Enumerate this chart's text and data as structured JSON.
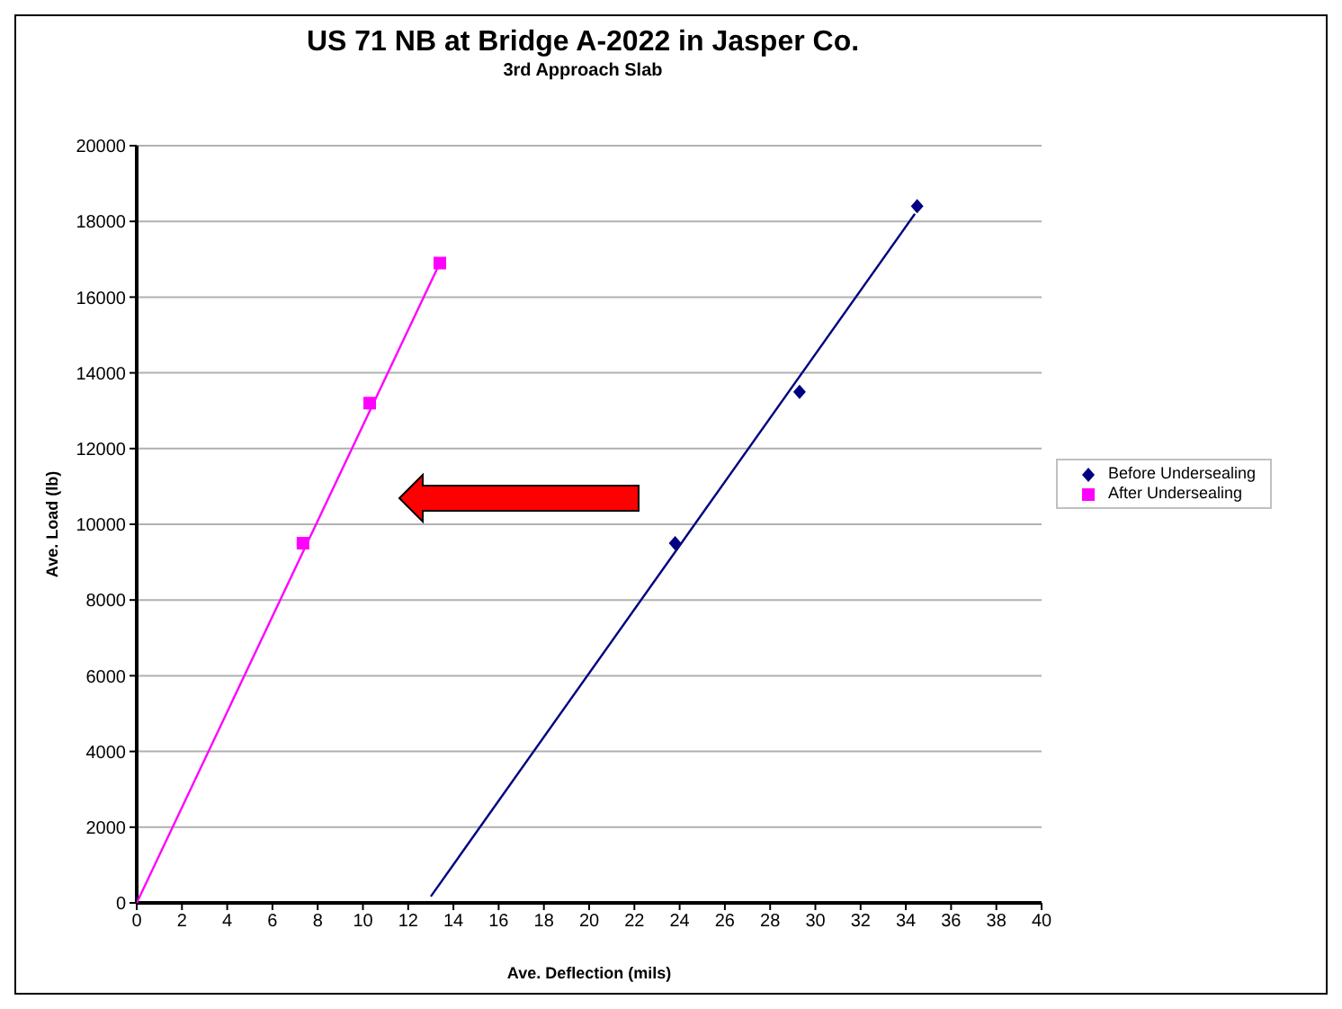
{
  "chart_data": {
    "type": "scatter",
    "title": "US 71 NB at Bridge A-2022 in Jasper Co.",
    "subtitle": "3rd Approach Slab",
    "xlabel": "Ave. Deflection (mils)",
    "ylabel": "Ave. Load (lb)",
    "series": [
      {
        "name": "Before Undersealing",
        "color": "#000080",
        "marker": "diamond",
        "x": [
          23.8,
          29.3,
          34.5
        ],
        "values": [
          9500,
          13500,
          18400
        ]
      },
      {
        "name": "After Undersealing",
        "color": "#ff00ff",
        "marker": "square",
        "x": [
          7.35,
          10.3,
          13.4
        ],
        "values": [
          9500,
          13200,
          16900
        ]
      },
      {
        "type": "line",
        "color": "#000080",
        "x": [
          13,
          34.4
        ],
        "values": [
          170,
          18200
        ]
      },
      {
        "type": "line",
        "color": "#ff00ff",
        "x": [
          0,
          13.4
        ],
        "values": [
          0,
          16900
        ]
      }
    ],
    "xlim": [
      0,
      40
    ],
    "xticks": [
      0,
      2,
      4,
      6,
      8,
      10,
      12,
      14,
      16,
      18,
      20,
      22,
      24,
      26,
      28,
      30,
      32,
      34,
      36,
      38,
      40
    ],
    "ylim": [
      0,
      20000
    ],
    "yticks": [
      0,
      2000,
      4000,
      6000,
      8000,
      10000,
      12000,
      14000,
      16000,
      18000,
      20000
    ],
    "grid": "y",
    "legend": "right"
  }
}
